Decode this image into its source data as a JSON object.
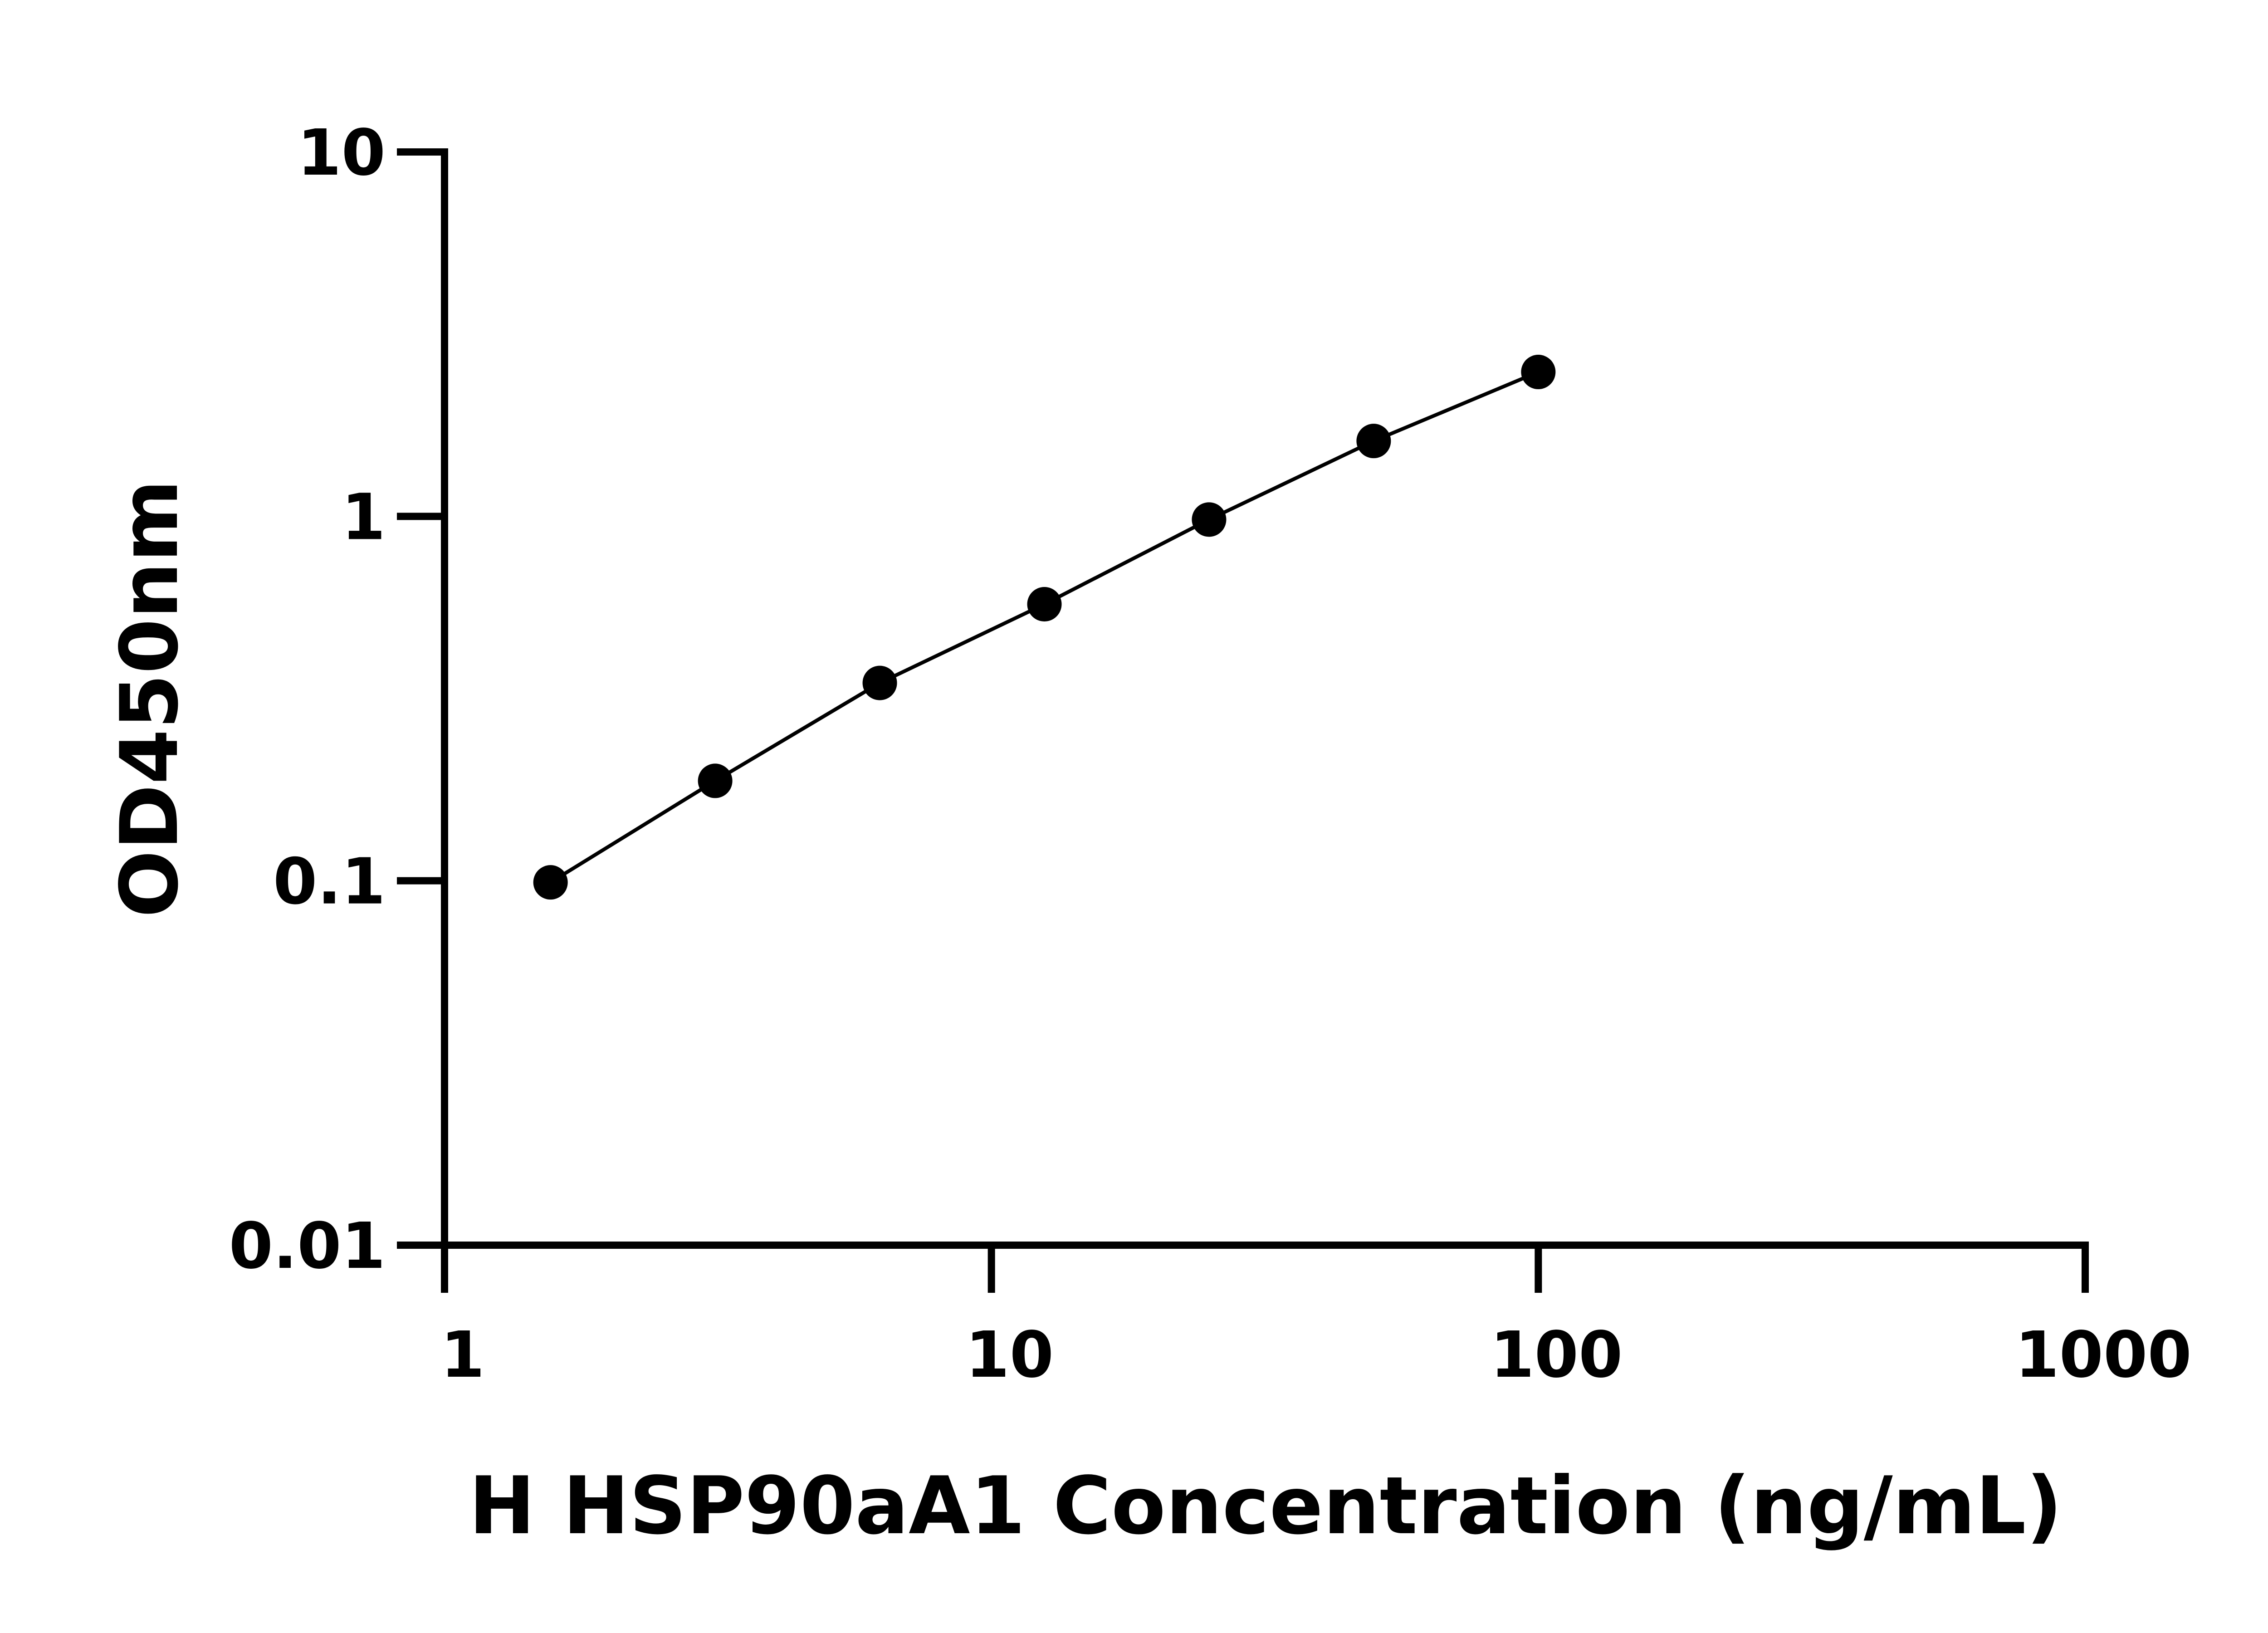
{
  "chart_data": {
    "type": "line",
    "title": "",
    "xlabel": "H HSP90aA1 Concentration (ng/mL)",
    "ylabel": "OD450nm",
    "xscale": "log",
    "yscale": "log",
    "xlim": [
      1,
      1000
    ],
    "ylim": [
      0.01,
      10
    ],
    "xticks": [
      "1",
      "10",
      "100",
      "1000"
    ],
    "yticks": [
      "0.01",
      "0.1",
      "1",
      "10"
    ],
    "grid": false,
    "markers": "filled-circle",
    "color": "#000000",
    "series": [
      {
        "x": [
          1.5625,
          3.125,
          6.25,
          12.5,
          25,
          50,
          100
        ],
        "y": [
          0.099,
          0.188,
          0.349,
          0.574,
          0.98,
          1.61,
          2.49
        ]
      }
    ]
  }
}
